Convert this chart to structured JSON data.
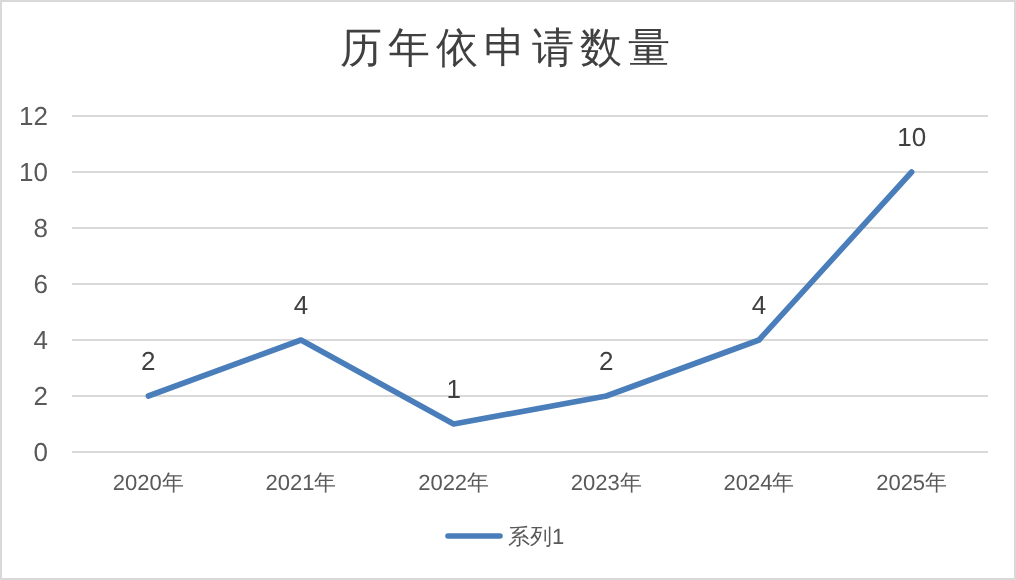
{
  "chart_data": {
    "type": "line",
    "title": "历年依申请数量",
    "categories": [
      "2020年",
      "2021年",
      "2022年",
      "2023年",
      "2024年",
      "2025年"
    ],
    "series": [
      {
        "name": "系列1",
        "color": "#4a7ebb",
        "values": [
          2,
          4,
          1,
          2,
          4,
          10
        ]
      }
    ],
    "ylim": [
      0,
      12
    ],
    "yticks": [
      0,
      2,
      4,
      6,
      8,
      10,
      12
    ],
    "grid": "y",
    "legend": "bottom",
    "data_labels": true,
    "marker": "none"
  }
}
